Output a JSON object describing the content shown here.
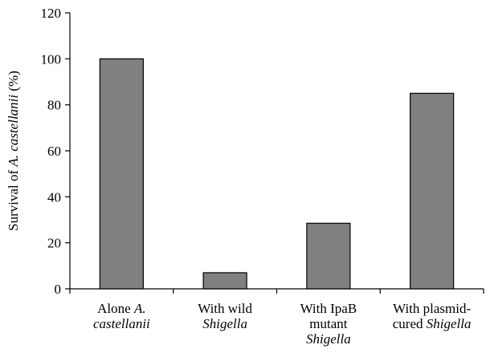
{
  "chart_data": {
    "type": "bar",
    "title": "",
    "xlabel": "",
    "ylabel": "Survival of A. castellanii (%)",
    "ylabel_parts": [
      {
        "text": "Survival of ",
        "italic": false
      },
      {
        "text": "A. castellanii",
        "italic": true
      },
      {
        "text": " (%)",
        "italic": false
      }
    ],
    "ylim": [
      0,
      120
    ],
    "yticks": [
      0,
      20,
      40,
      60,
      80,
      100,
      120
    ],
    "grid": false,
    "legend": "none",
    "bar_color": "#808080",
    "categories": [
      "Alone A. castellanii",
      "With wild Shigella",
      "With IpaB mutant Shigella",
      "With plasmid-cured Shigella"
    ],
    "category_label_lines": [
      [
        [
          {
            "text": "Alone ",
            "italic": false
          },
          {
            "text": "A.",
            "italic": true
          }
        ],
        [
          {
            "text": "castellanii",
            "italic": true
          }
        ]
      ],
      [
        [
          {
            "text": "With wild",
            "italic": false
          }
        ],
        [
          {
            "text": "Shigella",
            "italic": true
          }
        ]
      ],
      [
        [
          {
            "text": "With IpaB",
            "italic": false
          }
        ],
        [
          {
            "text": "mutant",
            "italic": false
          }
        ],
        [
          {
            "text": "Shigella",
            "italic": true
          }
        ]
      ],
      [
        [
          {
            "text": "With plasmid-",
            "italic": false
          }
        ],
        [
          {
            "text": "cured ",
            "italic": false
          },
          {
            "text": "Shigella",
            "italic": true
          }
        ]
      ]
    ],
    "values": [
      100,
      7,
      28.5,
      85
    ]
  }
}
